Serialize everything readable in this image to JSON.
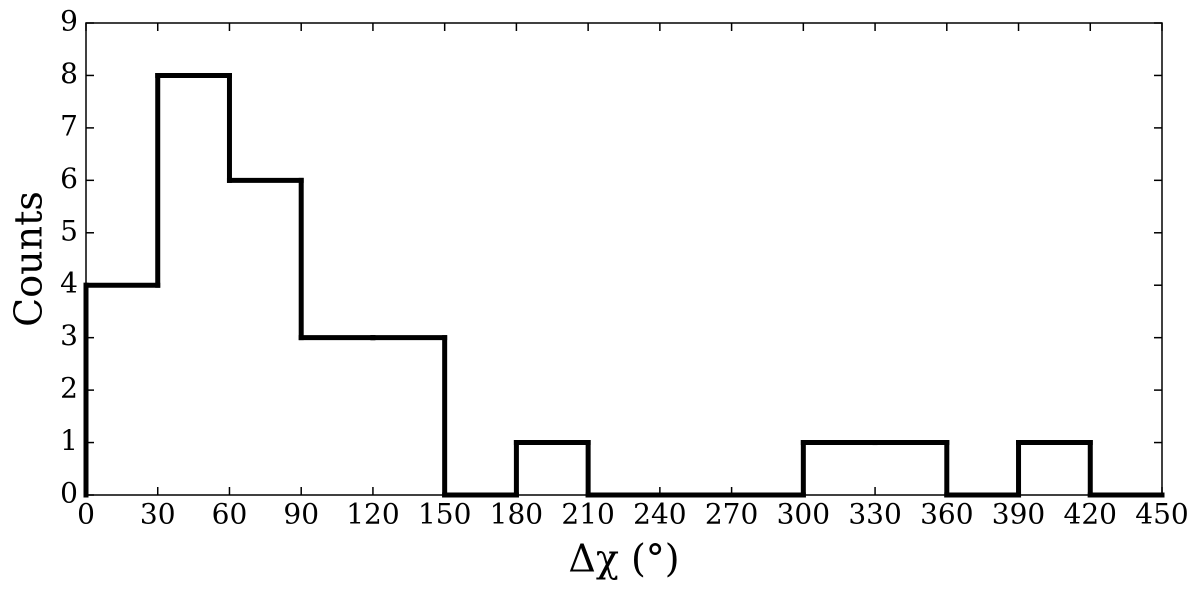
{
  "chart_data": {
    "type": "histogram",
    "xlabel": "Δχ (°)",
    "ylabel": "Counts",
    "bins": [
      0,
      30,
      60,
      90,
      120,
      150,
      180,
      210,
      240,
      270,
      300,
      330,
      360,
      390,
      420,
      450
    ],
    "values": [
      4,
      8,
      6,
      3,
      3,
      0,
      1,
      0,
      0,
      0,
      1,
      1,
      0,
      1,
      0
    ],
    "color": "#000000",
    "xlim": [
      0,
      450
    ],
    "xticks": [
      0,
      30,
      60,
      90,
      120,
      150,
      180,
      210,
      240,
      270,
      300,
      330,
      360,
      390,
      420,
      450
    ],
    "ylim": [
      0,
      9
    ],
    "yticks": [
      0,
      1,
      2,
      3,
      4,
      5,
      6,
      7,
      8,
      9
    ]
  }
}
